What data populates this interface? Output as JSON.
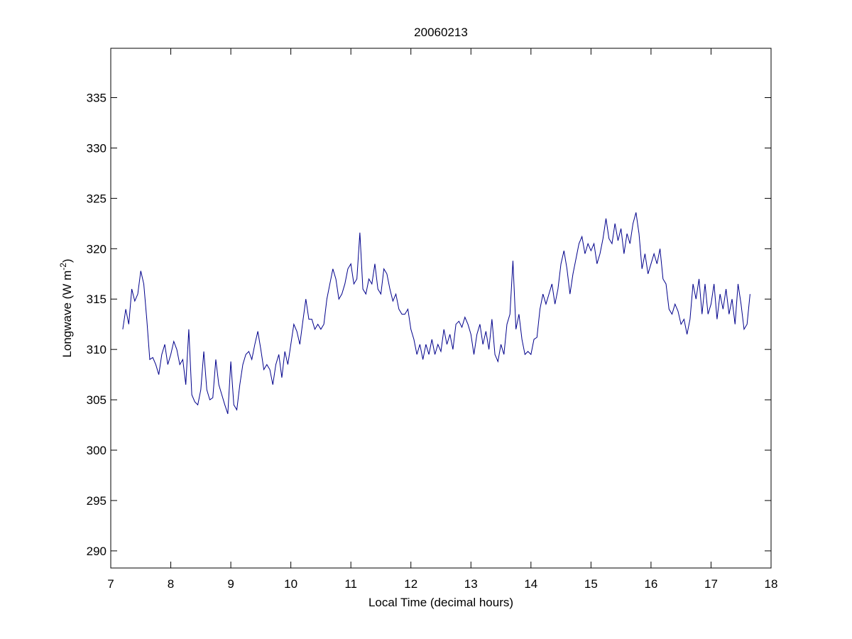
{
  "chart_data": {
    "type": "line",
    "title": "20060213",
    "xlabel": "Local Time (decimal hours)",
    "ylabel": {
      "text": "Longwave (W m",
      "superscript": "-2",
      "suffix": ")"
    },
    "xlim": [
      7,
      18
    ],
    "ylim": [
      288.3,
      339.9
    ],
    "xticks": [
      7,
      8,
      9,
      10,
      11,
      12,
      13,
      14,
      15,
      16,
      17,
      18
    ],
    "yticks": [
      290,
      295,
      300,
      305,
      310,
      315,
      320,
      325,
      330,
      335
    ],
    "grid": false,
    "x": [
      7.2,
      7.25,
      7.3,
      7.35,
      7.4,
      7.45,
      7.5,
      7.55,
      7.6,
      7.65,
      7.7,
      7.75,
      7.8,
      7.85,
      7.9,
      7.95,
      8.0,
      8.05,
      8.1,
      8.15,
      8.2,
      8.25,
      8.3,
      8.35,
      8.4,
      8.45,
      8.5,
      8.55,
      8.6,
      8.65,
      8.7,
      8.75,
      8.8,
      8.85,
      8.9,
      8.95,
      9.0,
      9.05,
      9.1,
      9.15,
      9.2,
      9.25,
      9.3,
      9.35,
      9.4,
      9.45,
      9.5,
      9.55,
      9.6,
      9.65,
      9.7,
      9.75,
      9.8,
      9.85,
      9.9,
      9.95,
      10.0,
      10.05,
      10.1,
      10.15,
      10.2,
      10.25,
      10.3,
      10.35,
      10.4,
      10.45,
      10.5,
      10.55,
      10.6,
      10.65,
      10.7,
      10.75,
      10.8,
      10.85,
      10.9,
      10.95,
      11.0,
      11.05,
      11.1,
      11.15,
      11.2,
      11.25,
      11.3,
      11.35,
      11.4,
      11.45,
      11.5,
      11.55,
      11.6,
      11.65,
      11.7,
      11.75,
      11.8,
      11.85,
      11.9,
      11.95,
      12.0,
      12.05,
      12.1,
      12.15,
      12.2,
      12.25,
      12.3,
      12.35,
      12.4,
      12.45,
      12.5,
      12.55,
      12.6,
      12.65,
      12.7,
      12.75,
      12.8,
      12.85,
      12.9,
      12.95,
      13.0,
      13.05,
      13.1,
      13.15,
      13.2,
      13.25,
      13.3,
      13.35,
      13.4,
      13.45,
      13.5,
      13.55,
      13.6,
      13.65,
      13.7,
      13.75,
      13.8,
      13.85,
      13.9,
      13.95,
      14.0,
      14.05,
      14.1,
      14.15,
      14.2,
      14.25,
      14.3,
      14.35,
      14.4,
      14.45,
      14.5,
      14.55,
      14.6,
      14.65,
      14.7,
      14.75,
      14.8,
      14.85,
      14.9,
      14.95,
      15.0,
      15.05,
      15.1,
      15.15,
      15.2,
      15.25,
      15.3,
      15.35,
      15.4,
      15.45,
      15.5,
      15.55,
      15.6,
      15.65,
      15.7,
      15.75,
      15.8,
      15.85,
      15.9,
      15.95,
      16.0,
      16.05,
      16.1,
      16.15,
      16.2,
      16.25,
      16.3,
      16.35,
      16.4,
      16.45,
      16.5,
      16.55,
      16.6,
      16.65,
      16.7,
      16.75,
      16.8,
      16.85,
      16.9,
      16.95,
      17.0,
      17.05,
      17.1,
      17.15,
      17.2,
      17.25,
      17.3,
      17.35,
      17.4,
      17.45,
      17.5,
      17.55,
      17.6,
      17.65
    ],
    "series": [
      {
        "color": "#00008b",
        "values": [
          312,
          314,
          312.5,
          316,
          314.8,
          315.5,
          317.8,
          316.5,
          313,
          309,
          309.2,
          308.5,
          307.5,
          309.5,
          310.5,
          308.5,
          309.5,
          310.8,
          310,
          308.5,
          309,
          306.5,
          312,
          305.5,
          304.8,
          304.5,
          306,
          309.8,
          306,
          305,
          305.2,
          309,
          306.5,
          305.5,
          304.5,
          303.6,
          308.8,
          304.5,
          304,
          306.5,
          308.5,
          309.5,
          309.8,
          309,
          310.5,
          311.8,
          310,
          308,
          308.5,
          308,
          306.5,
          308.5,
          309.5,
          307.2,
          309.8,
          308.5,
          310.5,
          312.5,
          311.8,
          310.5,
          312.8,
          315,
          313,
          313,
          312,
          312.5,
          312,
          312.5,
          315,
          316.5,
          318,
          317,
          315,
          315.5,
          316.5,
          318,
          318.5,
          316.5,
          317,
          321.6,
          316,
          315.5,
          317,
          316.5,
          318.5,
          316,
          315.5,
          318,
          317.5,
          316,
          314.8,
          315.5,
          314,
          313.5,
          313.5,
          314,
          312,
          311,
          309.5,
          310.5,
          309,
          310.5,
          309.5,
          311,
          309.5,
          310.5,
          309.8,
          312,
          310.5,
          311.5,
          310,
          312.5,
          312.8,
          312.2,
          313.2,
          312.5,
          311.5,
          309.5,
          311.5,
          312.5,
          310.5,
          311.8,
          310,
          313,
          309.5,
          308.8,
          310.5,
          309.5,
          312.5,
          313.5,
          318.8,
          312,
          313.5,
          311,
          309.5,
          309.8,
          309.5,
          311,
          311.2,
          314,
          315.5,
          314.5,
          315.5,
          316.5,
          314.5,
          316,
          318.5,
          319.8,
          318,
          315.5,
          317.5,
          319,
          320.5,
          321.2,
          319.5,
          320.5,
          319.8,
          320.5,
          318.5,
          319.5,
          321,
          323,
          321,
          320.5,
          322.5,
          320.8,
          322,
          319.5,
          321.5,
          320.5,
          322.5,
          323.6,
          321.5,
          318,
          319.5,
          317.5,
          318.5,
          319.5,
          318.5,
          320,
          317,
          316.5,
          314,
          313.5,
          314.5,
          313.8,
          312.5,
          313,
          311.5,
          313,
          316.5,
          315,
          317,
          313.5,
          316.5,
          313.5,
          314.5,
          316.5,
          313,
          315.5,
          314,
          316,
          313.5,
          315,
          312.5,
          316.5,
          314.5,
          312,
          312.5,
          315.5
        ]
      }
    ]
  }
}
